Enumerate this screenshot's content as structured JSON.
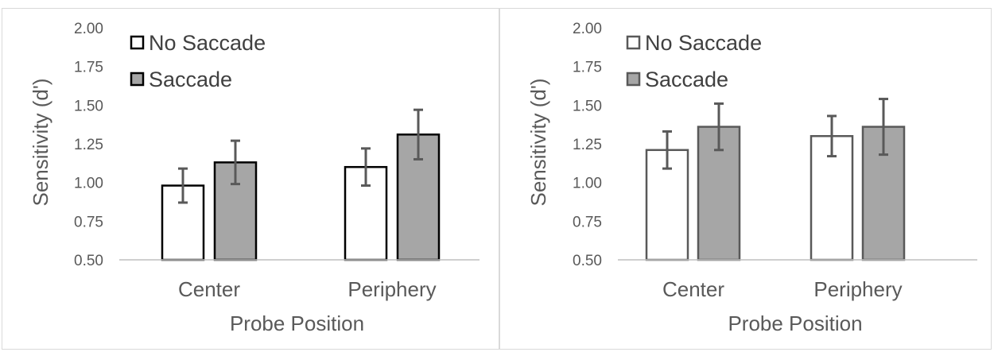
{
  "chart_data": [
    {
      "type": "bar",
      "title": "",
      "xlabel": "Probe Position",
      "ylabel": "Sensitivity (d')",
      "ylim": [
        0.5,
        2.0
      ],
      "yticks": [
        "2.00",
        "1.75",
        "1.50",
        "1.25",
        "1.00",
        "0.75",
        "0.50"
      ],
      "categories": [
        "Center",
        "Periphery"
      ],
      "legend": "top-left",
      "grid": false,
      "series": [
        {
          "name": "No Saccade",
          "color": "#ffffff",
          "stroke": "#000000",
          "values": [
            0.98,
            1.1
          ],
          "error": [
            0.11,
            0.12
          ]
        },
        {
          "name": "Saccade",
          "color": "#a6a6a6",
          "stroke": "#000000",
          "values": [
            1.13,
            1.31
          ],
          "error": [
            0.14,
            0.16
          ]
        }
      ],
      "error_color": "#595959"
    },
    {
      "type": "bar",
      "title": "",
      "xlabel": "Probe Position",
      "ylabel": "Sensitivity (d')",
      "ylim": [
        0.5,
        2.0
      ],
      "yticks": [
        "2.00",
        "1.75",
        "1.50",
        "1.25",
        "1.00",
        "0.75",
        "0.50"
      ],
      "categories": [
        "Center",
        "Periphery"
      ],
      "legend": "top-left",
      "grid": false,
      "series": [
        {
          "name": "No Saccade",
          "color": "#ffffff",
          "stroke": "#595959",
          "values": [
            1.21,
            1.3
          ],
          "error": [
            0.12,
            0.13
          ]
        },
        {
          "name": "Saccade",
          "color": "#a6a6a6",
          "stroke": "#595959",
          "values": [
            1.36,
            1.36
          ],
          "error": [
            0.15,
            0.18
          ]
        }
      ],
      "error_color": "#595959"
    }
  ]
}
